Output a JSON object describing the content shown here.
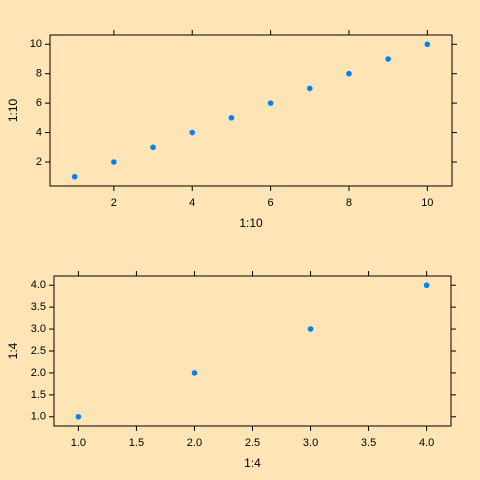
{
  "chart_data": [
    {
      "type": "scatter",
      "xlabel": "1:10",
      "ylabel": "1:10",
      "color": "#0080ff",
      "x": [
        1,
        2,
        3,
        4,
        5,
        6,
        7,
        8,
        9,
        10
      ],
      "y": [
        1,
        2,
        3,
        4,
        5,
        6,
        7,
        8,
        9,
        10
      ],
      "xlim": [
        0.37,
        10.63
      ],
      "ylim": [
        0.37,
        10.63
      ],
      "xticks": [
        2,
        4,
        6,
        8,
        10
      ],
      "yticks": [
        2,
        4,
        6,
        8,
        10
      ]
    },
    {
      "type": "scatter",
      "xlabel": "1:4",
      "ylabel": "1:4",
      "color": "#0080ff",
      "x": [
        1,
        2,
        3,
        4
      ],
      "y": [
        1,
        2,
        3,
        4
      ],
      "xlim": [
        0.79,
        4.21
      ],
      "ylim": [
        0.79,
        4.21
      ],
      "xticks": [
        {
          "value": 1,
          "label": "1.0"
        },
        {
          "value": 1.5,
          "label": "1.5"
        },
        {
          "value": 2,
          "label": "2.0"
        },
        {
          "value": 2.5,
          "label": "2.5"
        },
        {
          "value": 3,
          "label": "3.0"
        },
        {
          "value": 3.5,
          "label": "3.5"
        },
        {
          "value": 4,
          "label": "4.0"
        }
      ],
      "yticks": [
        {
          "value": 1,
          "label": "1.0"
        },
        {
          "value": 1.5,
          "label": "1.5"
        },
        {
          "value": 2,
          "label": "2.0"
        },
        {
          "value": 2.5,
          "label": "2.5"
        },
        {
          "value": 3,
          "label": "3.0"
        },
        {
          "value": 3.5,
          "label": "3.5"
        },
        {
          "value": 4,
          "label": "4.0"
        }
      ]
    }
  ]
}
